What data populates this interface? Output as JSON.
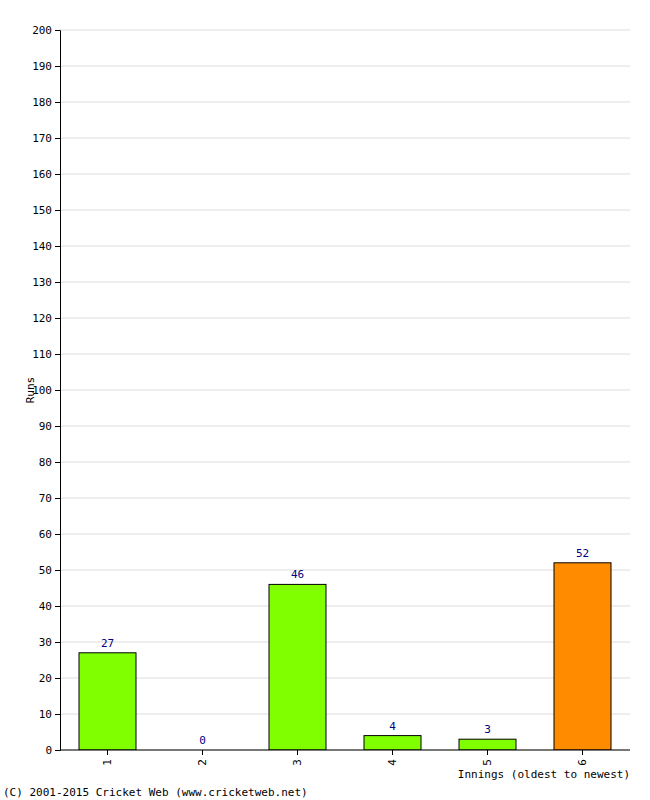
{
  "chart_data": {
    "type": "bar",
    "x_label": "Innings (oldest to newest)",
    "y_label": "Runs",
    "annotations": [
      "(C) 2001-2015 Cricket Web (www.cricketweb.net)"
    ],
    "categories": [
      "1",
      "2",
      "3",
      "4",
      "5",
      "6"
    ],
    "values": [
      27,
      0,
      46,
      4,
      3,
      52
    ],
    "colors": [
      "#7fff00",
      "#7fff00",
      "#7fff00",
      "#7fff00",
      "#7fff00",
      "#ff8c00"
    ],
    "ylim": [
      0,
      200
    ],
    "yticks": [
      0,
      10,
      20,
      30,
      40,
      50,
      60,
      70,
      80,
      90,
      100,
      110,
      120,
      130,
      140,
      150,
      160,
      170,
      180,
      190,
      200
    ],
    "grid": true,
    "data_labels": true
  }
}
